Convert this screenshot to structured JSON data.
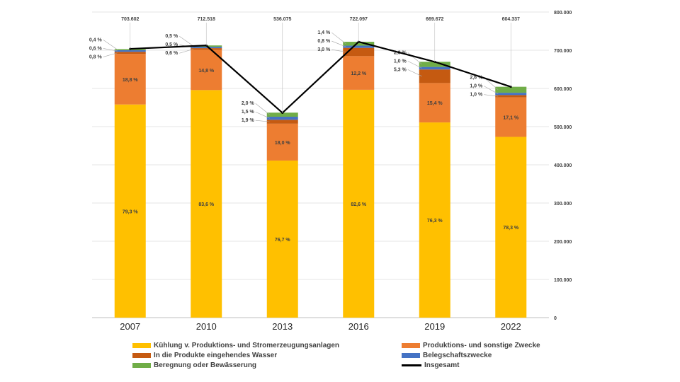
{
  "chart_data": {
    "type": "bar",
    "stacked": true,
    "categories": [
      "2007",
      "2010",
      "2013",
      "2016",
      "2019",
      "2022"
    ],
    "ylim": [
      0,
      800000
    ],
    "y_ticks": [
      "0",
      "100.000",
      "200.000",
      "300.000",
      "400.000",
      "500.000",
      "600.000",
      "700.000",
      "800.000"
    ],
    "y_tick_values": [
      0,
      100000,
      200000,
      300000,
      400000,
      500000,
      600000,
      700000,
      800000
    ],
    "y_axis_side": "right",
    "grid": true,
    "legend_position": "bottom",
    "series": [
      {
        "name": "Kühlung v. Produktions- und Stromerzeugungsanlagen",
        "color": "#FFC000",
        "values": [
          557977,
          595665,
          411169,
          596452,
          510960,
          473196
        ],
        "labels": [
          "79,3 %",
          "83,6 %",
          "76,7 %",
          "82,6 %",
          "76,3 %",
          "78,3 %"
        ]
      },
      {
        "name": "Produktions- und sonstige Zwecke",
        "color": "#ED7D31",
        "values": [
          132277,
          105453,
          96494,
          88096,
          103129,
          103342
        ],
        "labels": [
          "18,8 %",
          "14,8 %",
          "18,0 %",
          "12,2 %",
          "15,4 %",
          "17,1 %"
        ]
      },
      {
        "name": "In die Produkte eingehendes Wasser",
        "color": "#C55A11",
        "values": [
          5629,
          4275,
          10185,
          21663,
          35493,
          6043
        ],
        "labels": [
          "0,8 %",
          "0,6 %",
          "1,9 %",
          "3,0 %",
          "5,3 %",
          "1,0 %"
        ]
      },
      {
        "name": "Belegschaftszwecke",
        "color": "#4472C4",
        "values": [
          4222,
          3563,
          8041,
          5777,
          6697,
          6043
        ],
        "labels": [
          "0,6 %",
          "0,5 %",
          "1,5 %",
          "0,8 %",
          "1,0 %",
          "1,0 %"
        ]
      },
      {
        "name": "Beregnung oder Bewässerung",
        "color": "#70AD47",
        "values": [
          2814,
          3563,
          10722,
          10109,
          13393,
          15713
        ],
        "labels": [
          "0,4 %",
          "0,5 %",
          "2,0 %",
          "1,4 %",
          "2,0 %",
          "2,6 %"
        ]
      }
    ],
    "line_series": {
      "name": "Insgesamt",
      "color": "#000000",
      "values": [
        703602,
        712518,
        536075,
        722097,
        669672,
        604337
      ],
      "labels": [
        "703.602",
        "712.518",
        "536.075",
        "722.097",
        "669.672",
        "604.337"
      ]
    }
  }
}
